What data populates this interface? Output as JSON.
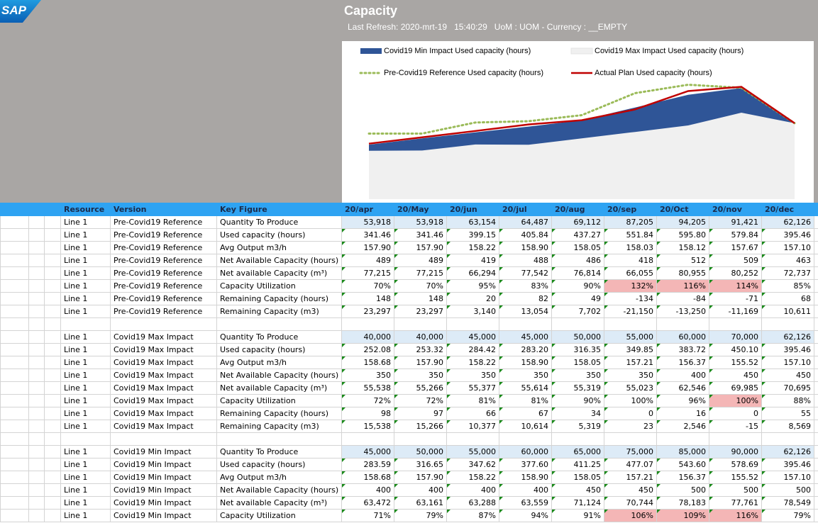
{
  "logo": "SAP",
  "header": {
    "title": "Capacity",
    "subtitle": "Last Refresh: 2020-mrt-19   15:40:29   UoM : UOM - Currency : __EMPTY"
  },
  "chart_data": {
    "type": "area",
    "ylim": [
      0,
      620
    ],
    "series": [
      {
        "name": "Covid19 Min Impact Used capacity (hours)",
        "color": "#2f5597",
        "style": "area",
        "values": [
          283.59,
          316.65,
          347.62,
          377.6,
          411.25,
          477.07,
          543.6,
          578.69,
          395.46
        ]
      },
      {
        "name": "Covid19 Max Impact Used capacity (hours)",
        "color": "#f0f0f0",
        "style": "area",
        "values": [
          252.08,
          253.32,
          284.42,
          283.2,
          316.35,
          349.85,
          383.72,
          450.1,
          395.46
        ]
      },
      {
        "name": "Pre-Covid19 Reference Used capacity (hours)",
        "color": "#9bbb59",
        "style": "dotted",
        "values": [
          341.46,
          341.46,
          399.15,
          405.84,
          437.27,
          551.84,
          595.8,
          579.84,
          395.46
        ]
      },
      {
        "name": "Actual Plan Used capacity (hours)",
        "color": "#c00000",
        "style": "line",
        "values": [
          289,
          322,
          355,
          389,
          411,
          467,
          563,
          585,
          395.46
        ]
      }
    ]
  },
  "table": {
    "columns": [
      "Resource",
      "Version",
      "Key Figure",
      "20/apr",
      "20/May",
      "20/jun",
      "20/jul",
      "20/aug",
      "20/sep",
      "20/Oct",
      "20/nov",
      "20/dec"
    ],
    "blocks": [
      {
        "rows": [
          {
            "cells": [
              "Line 1",
              "Pre-Covid19 Reference",
              "Quantity To Produce",
              "53,918",
              "53,918",
              "63,154",
              "64,487",
              "69,112",
              "87,205",
              "94,205",
              "91,421",
              "62,126"
            ]
          },
          {
            "cells": [
              "Line 1",
              "Pre-Covid19 Reference",
              "Used capacity (hours)",
              "341.46",
              "341.46",
              "399.15",
              "405.84",
              "437.27",
              "551.84",
              "595.80",
              "579.84",
              "395.46"
            ]
          },
          {
            "cells": [
              "Line 1",
              "Pre-Covid19 Reference",
              "Avg Output m3/h",
              "157.90",
              "157.90",
              "158.22",
              "158.90",
              "158.05",
              "158.03",
              "158.12",
              "157.67",
              "157.10"
            ]
          },
          {
            "cells": [
              "Line 1",
              "Pre-Covid19 Reference",
              "Net Available Capacity (hours)",
              "489",
              "489",
              "419",
              "488",
              "486",
              "418",
              "512",
              "509",
              "463"
            ]
          },
          {
            "cells": [
              "Line 1",
              "Pre-Covid19 Reference",
              "Net available Capacity (m³)",
              "77,215",
              "77,215",
              "66,294",
              "77,542",
              "76,814",
              "66,055",
              "80,955",
              "80,252",
              "72,737"
            ]
          },
          {
            "cells": [
              "Line 1",
              "Pre-Covid19 Reference",
              "Capacity Utilization",
              "70%",
              "70%",
              "95%",
              "83%",
              "90%",
              "132%",
              "116%",
              "114%",
              "85%"
            ],
            "highlight": [
              8,
              9,
              10
            ]
          },
          {
            "cells": [
              "Line 1",
              "Pre-Covid19 Reference",
              "Remaining Capacity (hours)",
              "148",
              "148",
              "20",
              "82",
              "49",
              "-134",
              "-84",
              "-71",
              "68"
            ]
          },
          {
            "cells": [
              "Line 1",
              "Pre-Covid19 Reference",
              "Remaining Capacity (m3)",
              "23,297",
              "23,297",
              "3,140",
              "13,054",
              "7,702",
              "-21,150",
              "-13,250",
              "-11,169",
              "10,611"
            ]
          }
        ]
      },
      {
        "rows": [
          {
            "cells": [
              "Line 1",
              "Covid19 Max Impact",
              "Quantity To Produce",
              "40,000",
              "40,000",
              "45,000",
              "45,000",
              "50,000",
              "55,000",
              "60,000",
              "70,000",
              "62,126"
            ]
          },
          {
            "cells": [
              "Line 1",
              "Covid19 Max Impact",
              "Used capacity (hours)",
              "252.08",
              "253.32",
              "284.42",
              "283.20",
              "316.35",
              "349.85",
              "383.72",
              "450.10",
              "395.46"
            ]
          },
          {
            "cells": [
              "Line 1",
              "Covid19 Max Impact",
              "Avg Output m3/h",
              "158.68",
              "157.90",
              "158.22",
              "158.90",
              "158.05",
              "157.21",
              "156.37",
              "155.52",
              "157.10"
            ]
          },
          {
            "cells": [
              "Line 1",
              "Covid19 Max Impact",
              "Net Available Capacity (hours)",
              "350",
              "350",
              "350",
              "350",
              "350",
              "350",
              "400",
              "450",
              "450"
            ]
          },
          {
            "cells": [
              "Line 1",
              "Covid19 Max Impact",
              "Net available Capacity (m³)",
              "55,538",
              "55,266",
              "55,377",
              "55,614",
              "55,319",
              "55,023",
              "62,546",
              "69,985",
              "70,695"
            ]
          },
          {
            "cells": [
              "Line 1",
              "Covid19 Max Impact",
              "Capacity Utilization",
              "72%",
              "72%",
              "81%",
              "81%",
              "90%",
              "100%",
              "96%",
              "100%",
              "88%"
            ],
            "highlight": [
              10
            ]
          },
          {
            "cells": [
              "Line 1",
              "Covid19 Max Impact",
              "Remaining Capacity (hours)",
              "98",
              "97",
              "66",
              "67",
              "34",
              "0",
              "16",
              "0",
              "55"
            ]
          },
          {
            "cells": [
              "Line 1",
              "Covid19 Max Impact",
              "Remaining Capacity (m3)",
              "15,538",
              "15,266",
              "10,377",
              "10,614",
              "5,319",
              "23",
              "2,546",
              "-15",
              "8,569"
            ]
          }
        ]
      },
      {
        "rows": [
          {
            "cells": [
              "Line 1",
              "Covid19 Min Impact",
              "Quantity To Produce",
              "45,000",
              "50,000",
              "55,000",
              "60,000",
              "65,000",
              "75,000",
              "85,000",
              "90,000",
              "62,126"
            ]
          },
          {
            "cells": [
              "Line 1",
              "Covid19 Min Impact",
              "Used capacity (hours)",
              "283.59",
              "316.65",
              "347.62",
              "377.60",
              "411.25",
              "477.07",
              "543.60",
              "578.69",
              "395.46"
            ]
          },
          {
            "cells": [
              "Line 1",
              "Covid19 Min Impact",
              "Avg Output m3/h",
              "158.68",
              "157.90",
              "158.22",
              "158.90",
              "158.05",
              "157.21",
              "156.37",
              "155.52",
              "157.10"
            ]
          },
          {
            "cells": [
              "Line 1",
              "Covid19 Min Impact",
              "Net Available Capacity (hours)",
              "400",
              "400",
              "400",
              "400",
              "450",
              "450",
              "500",
              "500",
              "500"
            ]
          },
          {
            "cells": [
              "Line 1",
              "Covid19 Min Impact",
              "Net available Capacity (m³)",
              "63,472",
              "63,161",
              "63,288",
              "63,559",
              "71,124",
              "70,744",
              "78,183",
              "77,761",
              "78,549"
            ]
          },
          {
            "cells": [
              "Line 1",
              "Covid19 Min Impact",
              "Capacity Utilization",
              "71%",
              "79%",
              "87%",
              "94%",
              "91%",
              "106%",
              "109%",
              "116%",
              "79%"
            ],
            "highlight": [
              8,
              9,
              10
            ]
          }
        ]
      }
    ]
  }
}
